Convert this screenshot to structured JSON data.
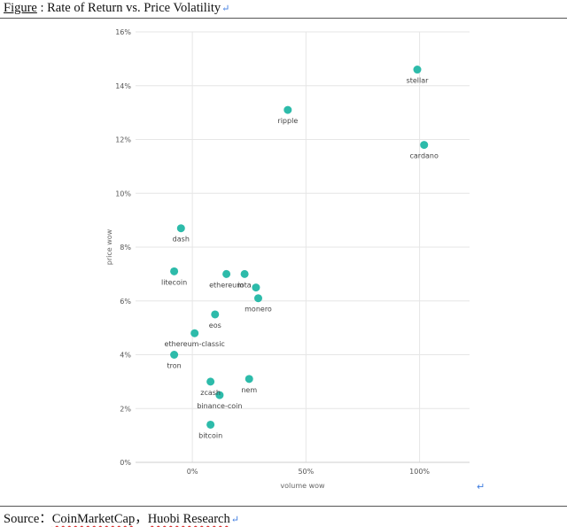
{
  "figure_caption": {
    "prefix": "Figure",
    "rest": " : Rate of Return vs. Price Volatility",
    "mark": "↵"
  },
  "source": {
    "label": "Source：",
    "part1": "CoinMarketCap",
    "sep": "，",
    "part2": "Huobi Research",
    "mark": "↵"
  },
  "stray_mark": "↵",
  "chart_data": {
    "type": "scatter",
    "xlabel": "volume wow",
    "ylabel": "price wow",
    "xlim": [
      -0.25,
      1.22
    ],
    "ylim": [
      0,
      0.16
    ],
    "x_ticks": [
      0,
      0.5,
      1
    ],
    "x_tick_labels": [
      "0%",
      "50%",
      "100%"
    ],
    "y_ticks": [
      0,
      0.02,
      0.04,
      0.06,
      0.08,
      0.1,
      0.12,
      0.14,
      0.16
    ],
    "y_tick_labels": [
      "0%",
      "2%",
      "4%",
      "6%",
      "8%",
      "10%",
      "12%",
      "14%",
      "16%"
    ],
    "grid": true,
    "point_color": "#2dbbaa",
    "points": [
      {
        "label": "stellar",
        "x": 0.99,
        "y": 0.146
      },
      {
        "label": "ripple",
        "x": 0.42,
        "y": 0.131
      },
      {
        "label": "cardano",
        "x": 1.02,
        "y": 0.118
      },
      {
        "label": "dash",
        "x": -0.05,
        "y": 0.087
      },
      {
        "label": "litecoin",
        "x": -0.08,
        "y": 0.071
      },
      {
        "label": "ethereum",
        "x": 0.15,
        "y": 0.07
      },
      {
        "label": "iota",
        "x": 0.23,
        "y": 0.07
      },
      {
        "label": "eos",
        "x": 0.1,
        "y": 0.055
      },
      {
        "label": "monero",
        "x": 0.29,
        "y": 0.061
      },
      {
        "label": "",
        "x": 0.28,
        "y": 0.065
      },
      {
        "label": "ethereum-classic",
        "x": 0.01,
        "y": 0.048
      },
      {
        "label": "tron",
        "x": -0.08,
        "y": 0.04
      },
      {
        "label": "zcash",
        "x": 0.08,
        "y": 0.03
      },
      {
        "label": "nem",
        "x": 0.25,
        "y": 0.031
      },
      {
        "label": "binance-coin",
        "x": 0.12,
        "y": 0.025
      },
      {
        "label": "bitcoin",
        "x": 0.08,
        "y": 0.014
      }
    ]
  }
}
